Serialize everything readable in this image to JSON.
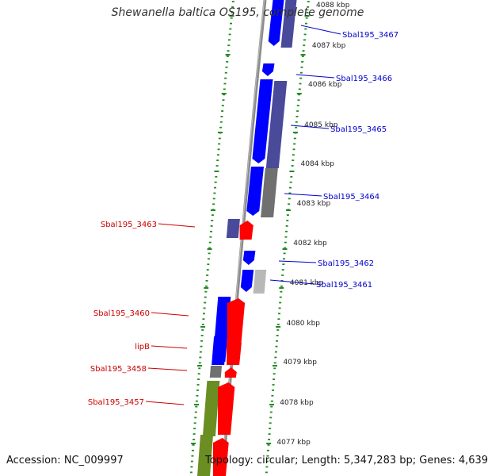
{
  "title": "Shewanella baltica OS195, complete genome",
  "footer": {
    "accession": "Accession: NC_009997",
    "summary": "Topology: circular; Length: 5,347,283 bp; Genes: 4,639"
  },
  "colors": {
    "forward_cds": "#ff0000",
    "reverse_cds": "#0000ff",
    "reverse_cds_dark": "#4a4a9a",
    "olive_feature": "#6b8e23",
    "grey_feature": "#707070",
    "light_grey_feature": "#b8b8b8",
    "backbone": "#8c8c8c",
    "ruler_ticks": "#228b22",
    "left_labels": "#cc0000",
    "right_labels": "#0000cc",
    "kbp_labels": "#222222"
  },
  "kbp_labels": [
    "4088 kbp",
    "4087 kbp",
    "4086 kbp",
    "4085 kbp",
    "4084 kbp",
    "4083 kbp",
    "4082 kbp",
    "4081 kbp",
    "4080 kbp",
    "4079 kbp",
    "4078 kbp",
    "4077 kbp"
  ],
  "left_labels": [
    "Sbal195_3463",
    "Sbal195_3460",
    "lipB",
    "Sbal195_3458",
    "Sbal195_3457"
  ],
  "right_labels": [
    "Sbal195_3467",
    "Sbal195_3466",
    "Sbal195_3465",
    "Sbal195_3464",
    "Sbal195_3462",
    "Sbal195_3461"
  ]
}
